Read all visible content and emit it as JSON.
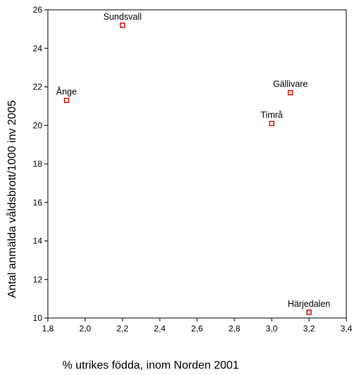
{
  "chart_data": {
    "type": "scatter",
    "title": "",
    "xlabel": "% utrikes födda, inom Norden 2001",
    "ylabel": "Antal anmälda våldsbrott/1000 inv 2005",
    "xlim": [
      1.8,
      3.4
    ],
    "ylim": [
      10,
      26
    ],
    "x_ticks": [
      "1,8",
      "2,0",
      "2,2",
      "2,4",
      "2,6",
      "2,8",
      "3,0",
      "3,2",
      "3,4"
    ],
    "y_ticks": [
      "10",
      "12",
      "14",
      "16",
      "18",
      "20",
      "22",
      "24",
      "26"
    ],
    "grid": false,
    "marker_color": "#cc0000",
    "points": [
      {
        "label": "Sundsvall",
        "x": 2.2,
        "y": 25.2
      },
      {
        "label": "Ånge",
        "x": 1.9,
        "y": 21.3
      },
      {
        "label": "Gällivare",
        "x": 3.1,
        "y": 21.7
      },
      {
        "label": "Timrå",
        "x": 3.0,
        "y": 20.1
      },
      {
        "label": "Härjedalen",
        "x": 3.2,
        "y": 10.3
      }
    ]
  }
}
